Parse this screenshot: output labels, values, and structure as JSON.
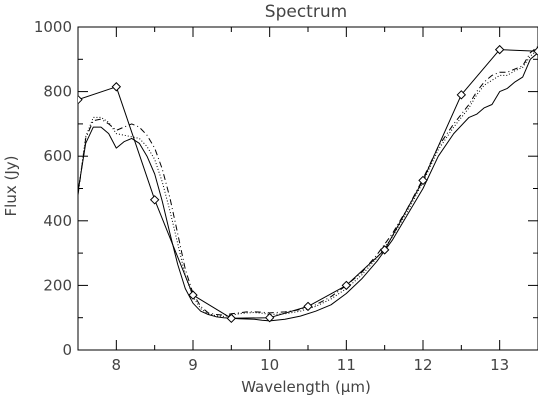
{
  "chart_data": {
    "type": "line",
    "title": "Spectrum",
    "xlabel": "Wavelength (μm)",
    "ylabel": "Flux (Jy)",
    "xlim": [
      7.5,
      13.5
    ],
    "ylim": [
      0,
      1000
    ],
    "xticks": [
      8,
      9,
      10,
      11,
      12,
      13
    ],
    "yticks": [
      0,
      200,
      400,
      600,
      800,
      1000
    ],
    "grid": false,
    "series": [
      {
        "style": "solid",
        "x": [
          7.5,
          7.6,
          7.7,
          7.8,
          7.9,
          8.0,
          8.1,
          8.2,
          8.3,
          8.4,
          8.5,
          8.6,
          8.7,
          8.8,
          8.9,
          9.0,
          9.1,
          9.2,
          9.3,
          9.4,
          9.5,
          9.6,
          9.7,
          9.8,
          9.9,
          10.0,
          10.2,
          10.4,
          10.6,
          10.8,
          11.0,
          11.2,
          11.4,
          11.6,
          11.8,
          12.0,
          12.2,
          12.4,
          12.6,
          12.7,
          12.8,
          12.9,
          13.0,
          13.1,
          13.2,
          13.3,
          13.4,
          13.5
        ],
        "values": [
          490,
          640,
          690,
          690,
          670,
          625,
          645,
          655,
          640,
          600,
          545,
          460,
          360,
          265,
          190,
          145,
          120,
          110,
          103,
          100,
          98,
          97,
          96,
          95,
          92,
          90,
          95,
          105,
          120,
          140,
          175,
          220,
          275,
          340,
          420,
          500,
          600,
          670,
          720,
          730,
          750,
          760,
          800,
          810,
          830,
          845,
          900,
          920
        ]
      },
      {
        "style": "dashdot",
        "x": [
          7.5,
          7.6,
          7.7,
          7.8,
          7.9,
          8.0,
          8.1,
          8.2,
          8.3,
          8.4,
          8.5,
          8.6,
          8.7,
          8.8,
          8.9,
          9.0,
          9.1,
          9.2,
          9.3,
          9.4,
          9.5,
          9.6,
          9.7,
          9.8,
          9.9,
          10.0,
          10.2,
          10.4,
          10.6,
          10.8,
          11.0,
          11.2,
          11.4,
          11.6,
          11.8,
          12.0,
          12.2,
          12.4,
          12.6,
          12.7,
          12.8,
          12.9,
          13.0,
          13.1,
          13.2,
          13.3,
          13.4,
          13.5
        ],
        "values": [
          480,
          655,
          710,
          715,
          700,
          680,
          690,
          700,
          690,
          665,
          625,
          560,
          470,
          360,
          250,
          175,
          135,
          115,
          110,
          108,
          112,
          115,
          118,
          118,
          117,
          115,
          118,
          125,
          140,
          165,
          200,
          240,
          295,
          360,
          440,
          530,
          630,
          700,
          760,
          800,
          830,
          850,
          860,
          860,
          870,
          880,
          920,
          940
        ]
      },
      {
        "style": "dotted",
        "x": [
          7.5,
          7.6,
          7.7,
          7.8,
          7.9,
          8.0,
          8.1,
          8.2,
          8.3,
          8.4,
          8.5,
          8.6,
          8.7,
          8.8,
          8.9,
          9.0,
          9.1,
          9.2,
          9.3,
          9.4,
          9.5,
          9.6,
          9.7,
          9.8,
          9.9,
          10.0,
          10.2,
          10.4,
          10.6,
          10.8,
          11.0,
          11.2,
          11.4,
          11.6,
          11.8,
          12.0,
          12.2,
          12.4,
          12.6,
          12.7,
          12.8,
          12.9,
          13.0,
          13.1,
          13.2,
          13.3,
          13.4,
          13.5
        ],
        "values": [
          485,
          660,
          720,
          720,
          705,
          670,
          665,
          660,
          655,
          630,
          590,
          520,
          430,
          330,
          230,
          165,
          128,
          112,
          106,
          104,
          108,
          112,
          115,
          116,
          114,
          110,
          112,
          120,
          135,
          158,
          190,
          232,
          285,
          350,
          430,
          520,
          620,
          690,
          750,
          790,
          820,
          835,
          850,
          850,
          865,
          875,
          910,
          930
        ]
      },
      {
        "style": "solid-diamond",
        "x": [
          7.5,
          8.0,
          8.5,
          9.0,
          9.5,
          10.0,
          10.5,
          11.0,
          11.5,
          12.0,
          12.5,
          13.0,
          13.5
        ],
        "values": [
          775,
          815,
          465,
          170,
          98,
          100,
          135,
          200,
          310,
          525,
          790,
          930,
          925
        ]
      }
    ]
  }
}
